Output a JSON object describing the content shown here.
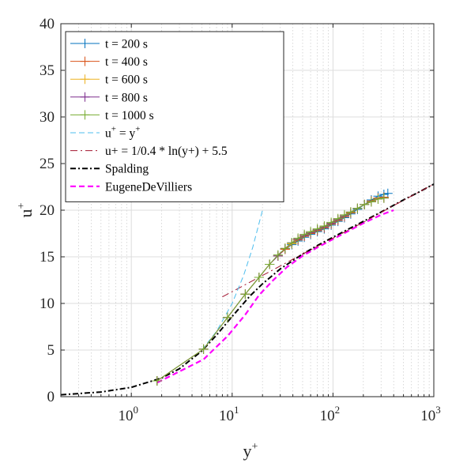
{
  "chart_data": {
    "type": "line",
    "xscale": "log",
    "xlim": [
      0.2,
      1000
    ],
    "ylim": [
      0,
      40
    ],
    "grid": "on (major and minor on x)",
    "legend_position": "top-left",
    "xlabel": "y",
    "xlabel_sup": "+",
    "ylabel": "u",
    "ylabel_sup": "+",
    "x_ticks": [
      1,
      10,
      100,
      1000
    ],
    "x_tick_labels": [
      {
        "base": "10",
        "exp": "0"
      },
      {
        "base": "10",
        "exp": "1"
      },
      {
        "base": "10",
        "exp": "2"
      },
      {
        "base": "10",
        "exp": "3"
      }
    ],
    "y_ticks": [
      "0",
      "5",
      "10",
      "15",
      "20",
      "25",
      "30",
      "35",
      "40"
    ],
    "series": [
      {
        "name": "t = 200 s",
        "color": "#0072BD",
        "style": "solid-plus",
        "x": [
          1.8,
          5.2,
          9.0,
          13.5,
          18.5,
          23.5,
          28.5,
          33.5,
          39,
          45,
          52,
          60,
          70,
          82,
          96,
          112,
          130,
          150,
          175,
          205,
          240,
          280,
          320,
          350
        ],
        "y": [
          1.7,
          5.1,
          8.5,
          11.0,
          12.8,
          14.2,
          15.1,
          15.8,
          16.3,
          16.7,
          17.1,
          17.4,
          17.7,
          18.0,
          18.4,
          18.8,
          19.2,
          19.6,
          20.1,
          20.6,
          21.1,
          21.5,
          21.7,
          21.8
        ]
      },
      {
        "name": "t = 400 s",
        "color": "#D95319",
        "style": "solid-plus",
        "x": [
          1.8,
          5.2,
          9.0,
          13.5,
          18.5,
          23.5,
          28.5,
          33.5,
          39,
          45,
          52,
          60,
          70,
          82,
          96,
          112,
          130,
          150,
          175,
          205,
          240,
          280,
          320
        ],
        "y": [
          1.7,
          5.1,
          8.5,
          11.0,
          12.8,
          14.2,
          15.1,
          15.8,
          16.4,
          16.8,
          17.2,
          17.5,
          17.8,
          18.1,
          18.5,
          18.9,
          19.3,
          19.7,
          20.2,
          20.6,
          21.0,
          21.3,
          21.4
        ]
      },
      {
        "name": "t = 600 s",
        "color": "#EDB120",
        "style": "solid-plus",
        "x": [
          1.8,
          5.2,
          9.0,
          13.5,
          18.5,
          23.5,
          28.5,
          33.5,
          39,
          45,
          52,
          60,
          70,
          82,
          96,
          112,
          130,
          150,
          175,
          205,
          240,
          280,
          320
        ],
        "y": [
          1.7,
          5.1,
          8.5,
          11.0,
          12.8,
          14.2,
          15.1,
          15.9,
          16.4,
          16.9,
          17.3,
          17.6,
          17.9,
          18.2,
          18.6,
          19.0,
          19.4,
          19.8,
          20.2,
          20.6,
          20.9,
          21.2,
          21.3
        ]
      },
      {
        "name": "t = 800 s",
        "color": "#7E2F8E",
        "style": "solid-plus",
        "x": [
          1.8,
          5.2,
          9.0,
          13.5,
          18.5,
          23.5,
          28.5,
          33.5,
          39,
          45,
          52,
          60,
          70,
          82,
          96,
          112,
          130,
          150,
          175,
          205,
          240,
          280,
          320
        ],
        "y": [
          1.7,
          5.1,
          8.5,
          11.0,
          12.8,
          14.2,
          15.1,
          15.9,
          16.5,
          16.9,
          17.3,
          17.6,
          17.9,
          18.2,
          18.6,
          19.0,
          19.4,
          19.8,
          20.2,
          20.6,
          20.9,
          21.2,
          21.3
        ]
      },
      {
        "name": "t = 1000 s",
        "color": "#77AC30",
        "style": "solid-plus",
        "x": [
          1.8,
          5.2,
          9.0,
          13.5,
          18.5,
          23.5,
          28.5,
          33.5,
          39,
          45,
          52,
          60,
          70,
          82,
          96,
          112,
          130,
          150,
          175,
          205,
          240,
          280,
          320
        ],
        "y": [
          1.7,
          5.1,
          8.5,
          11.0,
          12.8,
          14.2,
          15.2,
          15.9,
          16.5,
          17.0,
          17.4,
          17.7,
          18.0,
          18.3,
          18.7,
          19.1,
          19.5,
          19.8,
          20.2,
          20.6,
          20.9,
          21.2,
          21.3
        ]
      },
      {
        "name": "u+ = y+",
        "color": "#4DBEEE",
        "style": "dashed",
        "x": [
          5,
          7,
          10,
          13,
          16,
          20
        ],
        "y": [
          5,
          7,
          10,
          13,
          16,
          20
        ]
      },
      {
        "name": "u+ = 1/0.4 * ln(y+) + 5.5",
        "color": "#A2142F",
        "style": "dashdot",
        "x": [
          8,
          20,
          50,
          100,
          200,
          400,
          1000
        ],
        "y": [
          10.7,
          13.0,
          15.3,
          17.0,
          18.7,
          20.5,
          22.8
        ]
      },
      {
        "name": "Spalding",
        "color": "#000000",
        "style": "dashdot-bold",
        "x": [
          0.2,
          0.5,
          1,
          2,
          3,
          5,
          7,
          10,
          15,
          20,
          30,
          50,
          70,
          100,
          150,
          200,
          300,
          500,
          700,
          1000
        ],
        "y": [
          0.2,
          0.5,
          1.0,
          2.0,
          3.0,
          4.9,
          6.6,
          8.6,
          10.8,
          12.1,
          13.7,
          15.3,
          16.2,
          17.1,
          18.1,
          18.8,
          19.8,
          21.1,
          21.9,
          22.8
        ]
      },
      {
        "name": "EugeneDeVilliers",
        "color": "#FF00FF",
        "style": "dashed-bold",
        "x": [
          1.8,
          5.2,
          9.0,
          13.5,
          18.5,
          25,
          35,
          50,
          70,
          100,
          150,
          200,
          300,
          400
        ],
        "y": [
          1.5,
          4.0,
          6.5,
          8.8,
          10.9,
          12.4,
          13.9,
          15.1,
          16.0,
          16.9,
          17.9,
          18.6,
          19.5,
          20.0
        ]
      }
    ],
    "legend": [
      {
        "label": "t = 200 s"
      },
      {
        "label": "t = 400 s"
      },
      {
        "label": "t = 600 s"
      },
      {
        "label": "t = 800 s"
      },
      {
        "label": "t = 1000 s"
      },
      {
        "label_base": "u",
        "sup1": "+",
        "mid": " = y",
        "sup2": "+"
      },
      {
        "label": "u+ = 1/0.4 * ln(y+) + 5.5"
      },
      {
        "label": "Spalding"
      },
      {
        "label": "EugeneDeVilliers"
      }
    ]
  }
}
